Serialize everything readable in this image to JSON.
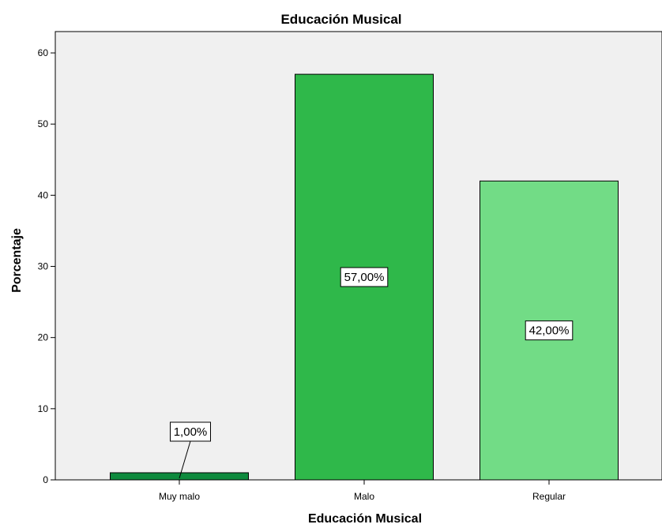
{
  "chart_data": {
    "type": "bar",
    "title": "Educación Musical",
    "xlabel": "Educación Musical",
    "ylabel": "Porcentaje",
    "categories": [
      "Muy malo",
      "Malo",
      "Regular"
    ],
    "values": [
      1.0,
      57.0,
      42.0
    ],
    "data_labels": [
      "1,00%",
      "57,00%",
      "42,00%"
    ],
    "colors": [
      "#0e8a3d",
      "#2fb84a",
      "#72dc86"
    ],
    "ylim": [
      0,
      63
    ],
    "yticks": [
      0,
      10,
      20,
      30,
      40,
      50,
      60
    ],
    "grid": false,
    "plot_background": "#f0f0f0"
  }
}
